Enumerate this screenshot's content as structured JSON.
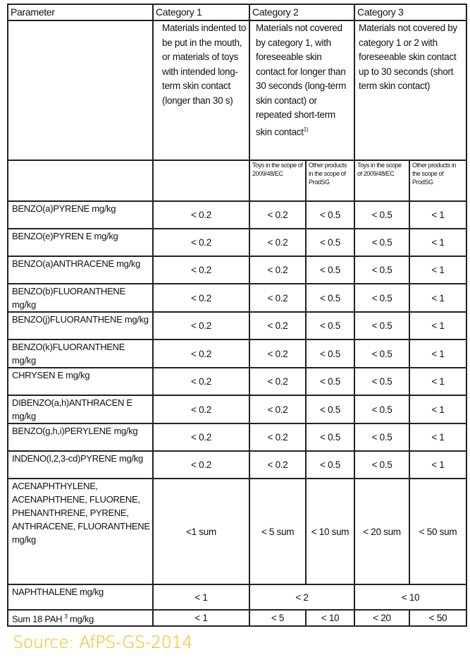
{
  "header": {
    "parameter": "Parameter",
    "categories": [
      "Category 1",
      "Category 2",
      "Category 3"
    ]
  },
  "descriptions": [
    "Materials indented to be put in the mouth, or materials of toys with intended long-term skin contact (longer than 30 s)",
    "Materials not covered by category 1, with foreseeable skin contact for longer than 30 seconds (long-term skin contact) or repeated short-term skin contact",
    "Materials not covered by category 1 or 2 with foreseeable skin contact up to 30 seconds (short term skin contact)"
  ],
  "footnote_mark": "1)",
  "subheaders": [
    "Toys in the scope of 2009/48/EC",
    "Other products in the scope of ProdSG",
    "Toys in the scope of 2009/48/EC",
    "Other products in the scope of ProdSG"
  ],
  "rows": [
    {
      "param": "BENZO(a)PYRENE mg/kg",
      "values": [
        "< 0.2",
        "< 0.2",
        "< 0.5",
        "< 0.5",
        "< 1"
      ]
    },
    {
      "param": "BENZO(e)PYREN E mg/kg",
      "values": [
        "< 0.2",
        "< 0.2",
        "< 0.5",
        "< 0.5",
        "< 1"
      ]
    },
    {
      "param": "BENZO(a)ANTHRACENE mg/kg",
      "values": [
        "< 0.2",
        "< 0.2",
        "< 0.5",
        "< 0.5",
        "< 1"
      ]
    },
    {
      "param": "BENZO(b)FLUORANTHENE mg/kg",
      "values": [
        "< 0.2",
        "< 0.2",
        "< 0.5",
        "< 0.5",
        "< 1"
      ]
    },
    {
      "param": "BENZO(j)FLUORANTHENE mg/kg",
      "values": [
        "< 0.2",
        "< 0.2",
        "< 0.5",
        "< 0.5",
        "< 1"
      ]
    },
    {
      "param": "BENZO(k)FLUORANTHENE mg/kg",
      "values": [
        "< 0.2",
        "< 0.2",
        "< 0.5",
        "< 0.5",
        "< 1"
      ]
    },
    {
      "param": "CHRYSEN E mg/kg",
      "values": [
        "< 0.2",
        "< 0.2",
        "< 0.5",
        "< 0.5",
        "< 1"
      ]
    },
    {
      "param": "DIBENZO(a,h)ANTHRACEN E mg/kg",
      "values": [
        "< 0.2",
        "< 0.2",
        "< 0.5",
        "< 0.5",
        "< 1"
      ]
    },
    {
      "param": "BENZO(g,h,i)PERYLENE mg/kg",
      "values": [
        "< 0.2",
        "< 0.2",
        "< 0.5",
        "< 0.5",
        "< 1"
      ]
    },
    {
      "param": "INDENO(l,2,3-cd)PYRENE mg/kg",
      "values": [
        "< 0.2",
        "< 0.2",
        "< 0.5",
        "< 0.5",
        "< 1"
      ]
    }
  ],
  "group_row": {
    "param": "ACENAPHTHYLENE, ACENAPHTHENE, FLUORENE, PHENANTHRENE, PYRENE, ANTHRACENE, FLUORANTHENE mg/kg",
    "values": [
      "<1 sum",
      "< 5 sum",
      "< 10 sum",
      "< 20 sum",
      "< 50 sum"
    ]
  },
  "naphthalene_row": {
    "param": "NAPHTHALENE mg/kg",
    "values": [
      "< 1",
      "< 2",
      "< 10"
    ]
  },
  "sum_row": {
    "param": "Sum 18 PAH",
    "footnote": "3",
    "unit": "mg/kg",
    "values": [
      "< 1",
      "< 5",
      "< 10",
      "< 20",
      "< 50"
    ]
  },
  "source": "Source: AfPS-GS-2014",
  "colors": {
    "source_text": "#f5b800",
    "border": "#222222"
  }
}
